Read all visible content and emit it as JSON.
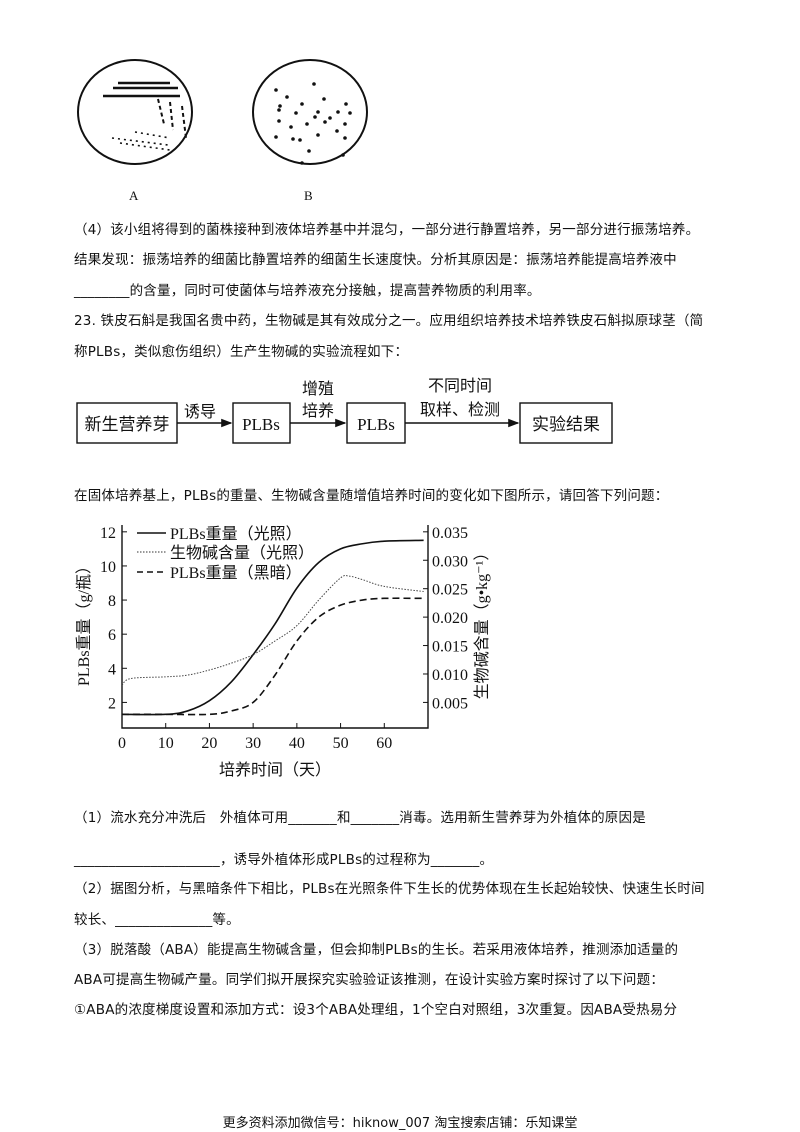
{
  "figure_plates": {
    "label_a": "A",
    "label_b": "B"
  },
  "paragraphs": {
    "q4_line1": "（4）该小组将得到的菌株接种到液体培养基中并混匀，一部分进行静置培养，另一部分进行振荡培养。",
    "q4_line2": "结果发现：振荡培养的细菌比静置培养的细菌生长速度快。分析其原因是：振荡培养能提高培养液中",
    "q4_line3": "________的含量，同时可使菌体与培养液充分接触，提高营养物质的利用率。",
    "q23_line1": "23. 铁皮石斛是我国名贵中药，生物碱是其有效成分之一。应用组织培养技术培养铁皮石斛拟原球茎（简",
    "q23_line2": "称PLBs，类似愈伤组织）生产生物碱的实验流程如下：",
    "chart_intro": "在固体培养基上，PLBs的重量、生物碱含量随增值培养时间的变化如下图所示，请回答下列问题：",
    "s1_line1": "（1）流水充分冲洗后　外植体可用_______和_______消毒。选用新生营养芽为外植体的原因是",
    "s1_line2": "_____________________，诱导外植体形成PLBs的过程称为_______。",
    "s2_line1": "（2）据图分析，与黑暗条件下相比，PLBs在光照条件下生长的优势体现在生长起始较快、快速生长时间",
    "s2_line2": "较长、______________等。",
    "s3_line1": "（3）脱落酸（ABA）能提高生物碱含量，但会抑制PLBs的生长。若采用液体培养，推测添加适量的",
    "s3_line2": "ABA可提高生物碱产量。同学们拟开展探究实验验证该推测，在设计实验方案时探讨了以下问题：",
    "s3_line3": "①ABA的浓度梯度设置和添加方式：设3个ABA处理组，1个空白对照组，3次重复。因ABA受热易分"
  },
  "flowchart": {
    "boxes": [
      "新生营养芽",
      "PLBs",
      "PLBs",
      "实验结果"
    ],
    "arrow1": "诱导",
    "arrow2_line1": "增殖",
    "arrow2_line2": "培养",
    "arrow3_line1": "不同时间",
    "arrow3_line2": "取样、检测"
  },
  "chart_data": {
    "type": "line",
    "xlabel": "培养时间（天）",
    "ylabel": "PLBs重量（g/瓶）",
    "ylabel_right": "生物碱含量（g•kg⁻¹）",
    "x_ticks": [
      "0",
      "10",
      "20",
      "30",
      "40",
      "50",
      "60"
    ],
    "y_ticks": [
      "2",
      "4",
      "6",
      "8",
      "10",
      "12"
    ],
    "y_right_ticks": [
      "0.005",
      "0.010",
      "0.015",
      "0.020",
      "0.025",
      "0.030",
      "0.035"
    ],
    "xlim": [
      0,
      70
    ],
    "ylim": [
      0.5,
      12.4
    ],
    "ylim_right": [
      0.0005,
      0.0362
    ],
    "legend_position": "top-left",
    "series": [
      {
        "name": "PLBs重量（光照）",
        "axis": "left",
        "style": "solid",
        "x": [
          0,
          10,
          15,
          20,
          25,
          30,
          35,
          40,
          45,
          50,
          55,
          60,
          69
        ],
        "y": [
          1.3,
          1.3,
          1.5,
          2.1,
          3.2,
          4.8,
          6.6,
          8.7,
          10.2,
          11.0,
          11.3,
          11.45,
          11.5
        ]
      },
      {
        "name": "生物碱含量（光照）",
        "axis": "right",
        "style": "dotted",
        "x": [
          0,
          2,
          10,
          15,
          20,
          25,
          30,
          35,
          40,
          45,
          50,
          52,
          55,
          60,
          69
        ],
        "y": [
          0.008,
          0.0092,
          0.0095,
          0.0098,
          0.0107,
          0.0119,
          0.0134,
          0.0158,
          0.0185,
          0.023,
          0.0269,
          0.0272,
          0.0266,
          0.0254,
          0.0245
        ]
      },
      {
        "name": "PLBs重量（黑暗）",
        "axis": "left",
        "style": "dashed",
        "x": [
          0,
          10,
          20,
          25,
          30,
          35,
          40,
          45,
          50,
          55,
          60,
          69
        ],
        "y": [
          1.3,
          1.3,
          1.3,
          1.5,
          2.0,
          3.6,
          5.6,
          7.0,
          7.7,
          8.0,
          8.1,
          8.1
        ]
      }
    ]
  },
  "footer": "更多资料添加微信号：hiknow_007  淘宝搜索店铺：乐知课堂"
}
